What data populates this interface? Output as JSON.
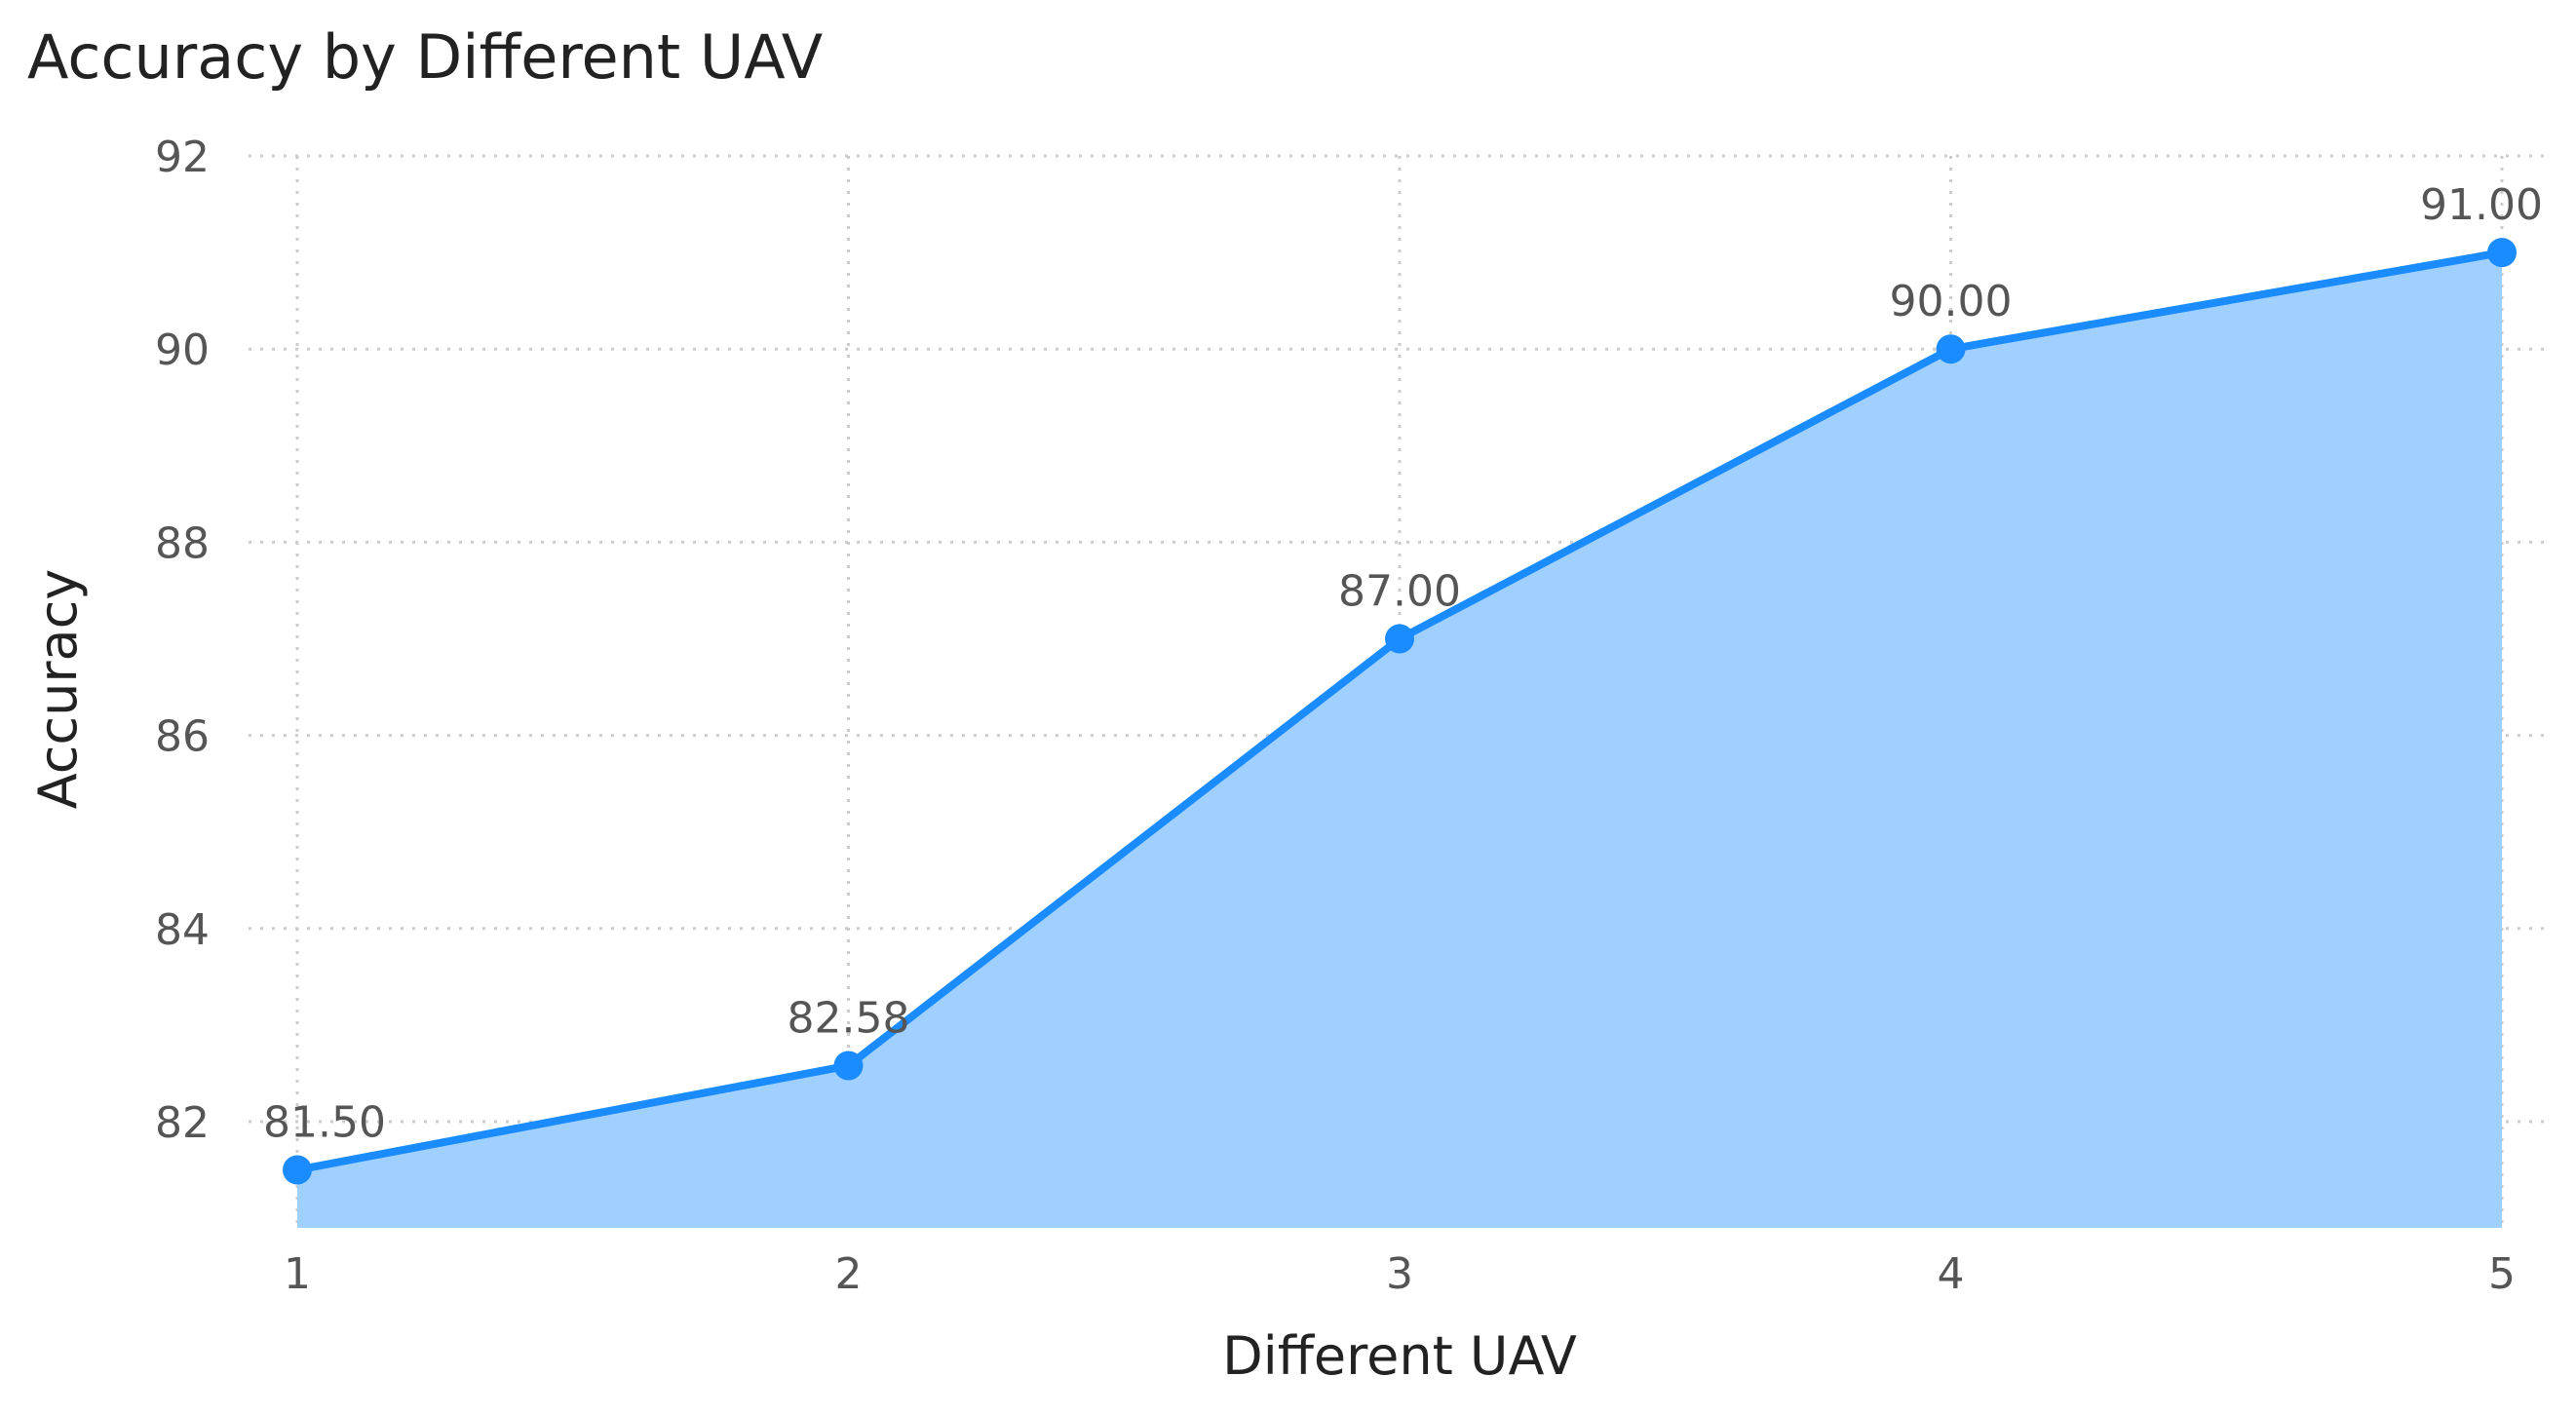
{
  "chart_data": {
    "type": "area",
    "title": "Accuracy by Different UAV",
    "xlabel": "Different UAV",
    "ylabel": "Accuracy",
    "x": [
      1,
      2,
      3,
      4,
      5
    ],
    "x_tick_labels": [
      "1",
      "2",
      "3",
      "4",
      "5"
    ],
    "values": [
      81.5,
      82.58,
      87.0,
      90.0,
      91.0
    ],
    "data_labels": [
      "81.50",
      "82.58",
      "87.00",
      "90.00",
      "91.00"
    ],
    "y_ticks": [
      82,
      84,
      86,
      88,
      90,
      92
    ],
    "y_tick_labels": [
      "82",
      "84",
      "86",
      "88",
      "90",
      "92"
    ],
    "xlim": [
      1,
      5
    ],
    "ylim": [
      80.9,
      92
    ],
    "grid": true,
    "colors": {
      "line": "#1a8cff",
      "fill": "#a0d0ff",
      "marker": "#1a8cff"
    }
  }
}
